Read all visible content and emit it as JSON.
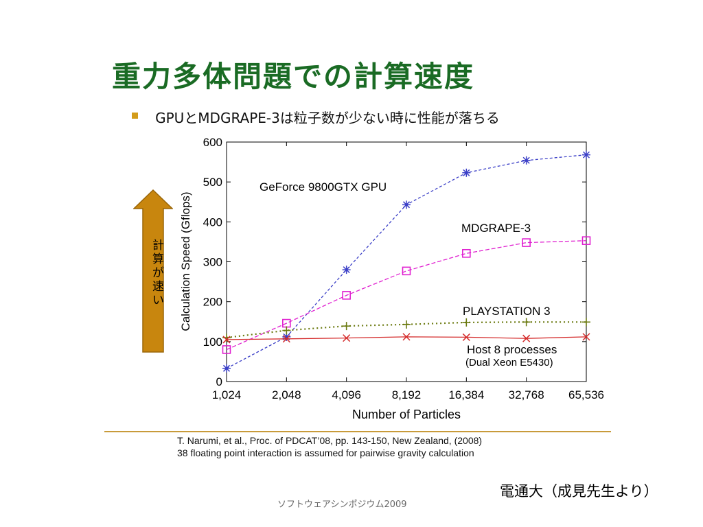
{
  "slide": {
    "title": "重力多体問題での計算速度",
    "bullet": "GPUとMDGRAPE-3は粒子数が少ない時に性能が落ちる",
    "arrow_label": "計算が速い",
    "reference_line1": "T. Narumi, et al., Proc. of PDCAT’08, pp. 143-150, New Zealand, (2008)",
    "reference_line2": "38 floating point interaction is assumed for pairwise gravity calculation",
    "credit": "電通大（成見先生より）",
    "footer": "ソフトウェアシンポジウム2009",
    "colors": {
      "title": "#1a6b24",
      "bullet": "#d39c1a",
      "arrow": "#c8860e",
      "rule": "#c89b3a"
    }
  },
  "chart_data": {
    "type": "line",
    "xlabel": "Number of Particles",
    "ylabel": "Calculation Speed (Gflops)",
    "categories": [
      "1,024",
      "2,048",
      "4,096",
      "8,192",
      "16,384",
      "32,768",
      "65,536"
    ],
    "ylim": [
      0,
      600
    ],
    "yticks": [
      "0",
      "100",
      "200",
      "300",
      "400",
      "500",
      "600"
    ],
    "x_scale": "log2",
    "grid": false,
    "series": [
      {
        "name": "GeForce 9800GTX GPU",
        "values": [
          33,
          112,
          280,
          443,
          523,
          554,
          568
        ],
        "color": "#3b3fc7",
        "marker": "asterisk",
        "dash": "4,3"
      },
      {
        "name": "MDGRAPE-3",
        "values": [
          80,
          146,
          216,
          277,
          321,
          348,
          353
        ],
        "color": "#e020d0",
        "marker": "square",
        "dash": "6,3"
      },
      {
        "name": "PLAYSTATION 3",
        "values": [
          110,
          128,
          139,
          143,
          148,
          149,
          149
        ],
        "color": "#6b7a10",
        "marker": "plus",
        "dash": "2,4"
      },
      {
        "name": "Host 8 processes",
        "values": [
          105,
          107,
          109,
          112,
          111,
          108,
          112
        ],
        "color": "#d42a2a",
        "marker": "x",
        "dash": ""
      }
    ],
    "annotations": [
      "GeForce 9800GTX GPU",
      "MDGRAPE-3",
      "PLAYSTATION 3",
      "Host 8 processes",
      "(Dual Xeon E5430)"
    ]
  }
}
